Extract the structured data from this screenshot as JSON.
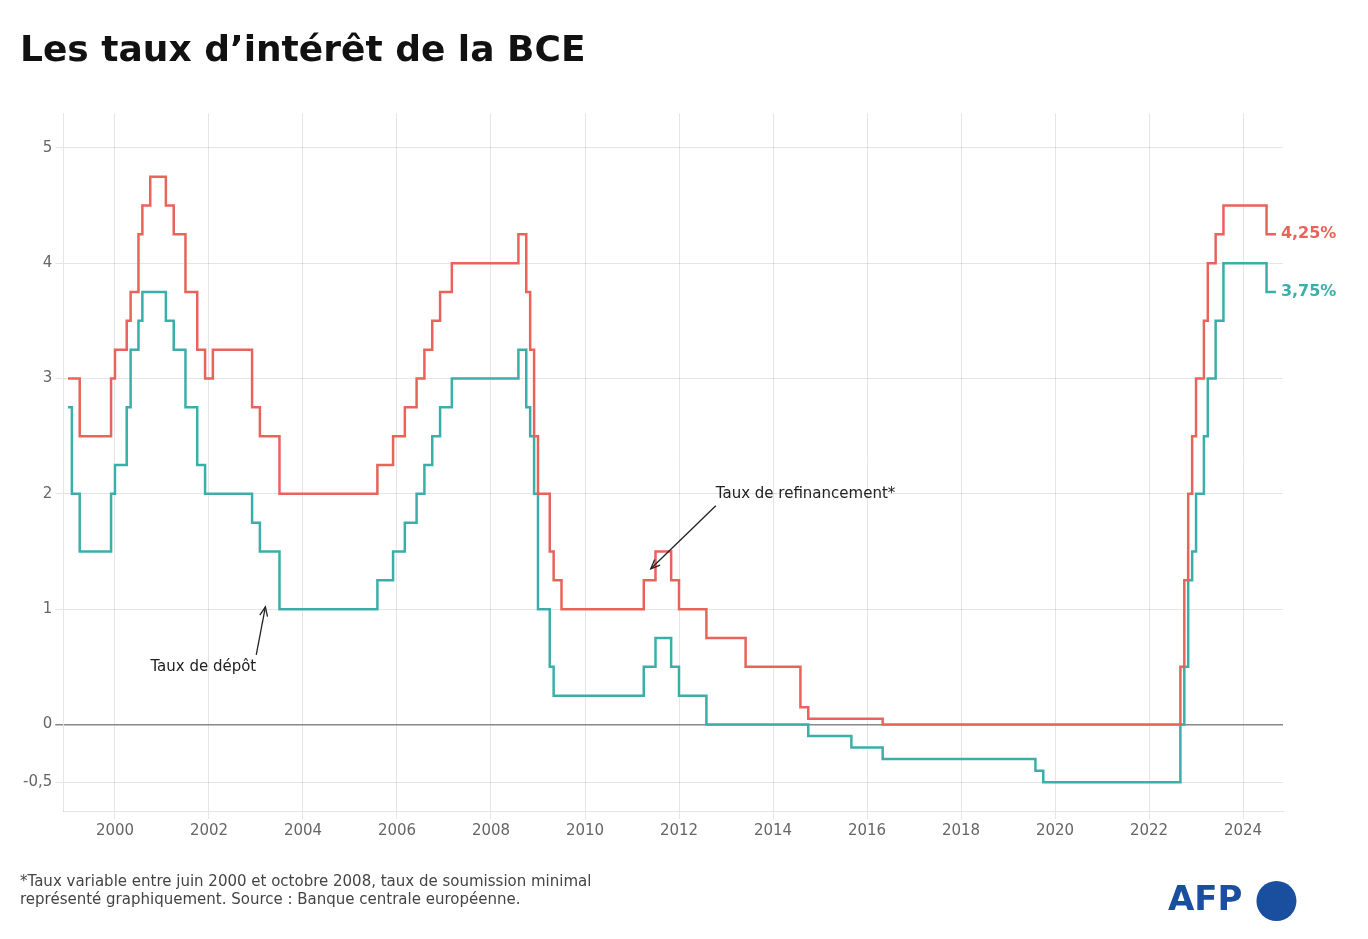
{
  "chart_data": {
    "type": "line",
    "line_style": "step",
    "title": "Les taux d’intérêt de la BCE",
    "grid": true,
    "xlim": [
      1998.9,
      2024.85
    ],
    "xticks": [
      2000,
      2002,
      2004,
      2006,
      2008,
      2010,
      2012,
      2014,
      2016,
      2018,
      2020,
      2022,
      2024
    ],
    "ylim": [
      -0.75,
      5.3
    ],
    "yticks": [
      {
        "value": -0.5,
        "label": "-0,5"
      },
      0,
      1,
      2,
      3,
      4,
      5
    ],
    "series": [
      {
        "color": "#e8635a",
        "x": [
          1999.0,
          1999.25,
          1999.917,
          2000.0,
          2000.25,
          2000.333,
          2000.5,
          2000.583,
          2000.75,
          2001.083,
          2001.25,
          2001.5,
          2001.75,
          2001.917,
          2002.083,
          2002.917,
          2003.083,
          2003.5,
          2005.0,
          2005.583,
          2005.917,
          2006.167,
          2006.417,
          2006.583,
          2006.75,
          2006.917,
          2007.167,
          2008.583,
          2008.75,
          2008.833,
          2008.917,
          2009.0,
          2009.25,
          2009.333,
          2009.5,
          2010.0,
          2011.25,
          2011.5,
          2011.833,
          2012.0,
          2012.583,
          2013.417,
          2014.583,
          2014.75,
          2016.333,
          2022.583,
          2022.667,
          2022.75,
          2022.833,
          2022.917,
          2023.0,
          2023.167,
          2023.25,
          2023.417,
          2023.583,
          2023.75,
          2024.333,
          2024.5,
          2024.7
        ],
        "values": [
          3.0,
          2.5,
          3.0,
          3.25,
          3.5,
          3.75,
          4.25,
          4.5,
          4.75,
          4.5,
          4.25,
          3.75,
          3.25,
          3.0,
          3.25,
          2.75,
          2.5,
          2.0,
          2.0,
          2.25,
          2.5,
          2.75,
          3.0,
          3.25,
          3.5,
          3.75,
          4.0,
          4.25,
          3.75,
          3.25,
          2.5,
          2.0,
          1.5,
          1.25,
          1.0,
          1.0,
          1.25,
          1.5,
          1.25,
          1.0,
          0.75,
          0.5,
          0.15,
          0.05,
          0.0,
          0.0,
          0.5,
          1.25,
          2.0,
          2.5,
          3.0,
          3.5,
          4.0,
          4.25,
          4.5,
          4.5,
          4.5,
          4.25,
          4.25
        ]
      },
      {
        "color": "#3aafa9",
        "x": [
          1999.0,
          1999.083,
          1999.25,
          1999.917,
          2000.0,
          2000.25,
          2000.333,
          2000.5,
          2000.583,
          2000.75,
          2001.083,
          2001.25,
          2001.5,
          2001.75,
          2001.917,
          2002.083,
          2002.917,
          2003.083,
          2003.5,
          2005.0,
          2005.583,
          2005.917,
          2006.167,
          2006.417,
          2006.583,
          2006.75,
          2006.917,
          2007.167,
          2008.583,
          2008.75,
          2008.833,
          2008.917,
          2009.0,
          2009.25,
          2009.333,
          2009.5,
          2010.0,
          2011.25,
          2011.5,
          2011.833,
          2012.0,
          2012.583,
          2014.583,
          2014.75,
          2015.667,
          2016.333,
          2019.583,
          2019.75,
          2022.583,
          2022.667,
          2022.75,
          2022.833,
          2022.917,
          2023.0,
          2023.167,
          2023.25,
          2023.417,
          2023.583,
          2023.75,
          2024.333,
          2024.5,
          2024.7
        ],
        "values": [
          2.75,
          2.0,
          1.5,
          2.0,
          2.25,
          2.75,
          3.25,
          3.5,
          3.75,
          3.75,
          3.5,
          3.25,
          2.75,
          2.25,
          2.0,
          2.0,
          1.75,
          1.5,
          1.0,
          1.0,
          1.25,
          1.5,
          1.75,
          2.0,
          2.25,
          2.5,
          2.75,
          3.0,
          3.25,
          2.75,
          2.5,
          2.0,
          1.0,
          0.5,
          0.25,
          0.25,
          0.25,
          0.5,
          0.75,
          0.5,
          0.25,
          0.0,
          0.0,
          -0.1,
          -0.2,
          -0.3,
          -0.4,
          -0.5,
          -0.5,
          0.0,
          0.5,
          1.25,
          1.5,
          2.0,
          2.5,
          3.0,
          3.5,
          4.0,
          4.0,
          4.0,
          3.75,
          3.75
        ]
      }
    ],
    "annotations": [
      {
        "text": "Taux de dépôt",
        "x": 2003.2,
        "y": 1.02,
        "arrow": true
      },
      {
        "text": "Taux de refinancement*",
        "x": 2011.4,
        "y": 1.35,
        "arrow": true
      },
      {
        "text": "4,25%",
        "x": 2024.72,
        "y": 4.25,
        "color": "#e8635a"
      },
      {
        "text": "3,75%",
        "x": 2024.72,
        "y": 3.75,
        "color": "#3aafa9"
      }
    ],
    "footnote": [
      "*Taux variable entre juin 2000 et octobre 2008, taux de soumission minimal",
      "représenté graphiquement. Source : Banque centrale européenne."
    ],
    "logo": "AFP"
  }
}
